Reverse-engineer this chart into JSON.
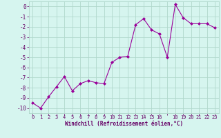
{
  "x": [
    0,
    1,
    2,
    3,
    4,
    5,
    6,
    7,
    8,
    9,
    10,
    11,
    12,
    13,
    14,
    15,
    16,
    17,
    18,
    19,
    20,
    21,
    22,
    23
  ],
  "y": [
    -9.5,
    -10.0,
    -8.9,
    -7.9,
    -6.9,
    -8.3,
    -7.6,
    -7.3,
    -7.5,
    -7.6,
    -5.5,
    -5.0,
    -4.9,
    -1.8,
    -1.2,
    -2.3,
    -2.7,
    -5.0,
    0.2,
    -1.1,
    -1.7,
    -1.7,
    -1.7,
    -2.1
  ],
  "line_color": "#990099",
  "marker": "D",
  "marker_size": 2,
  "bg_color": "#d6f5ef",
  "grid_color": "#b0d8cc",
  "xlabel": "Windchill (Refroidissement éolien,°C)",
  "xlabel_color": "#660066",
  "tick_color": "#660066",
  "xlim": [
    -0.5,
    23.5
  ],
  "ylim": [
    -10.5,
    0.5
  ],
  "yticks": [
    0,
    -1,
    -2,
    -3,
    -4,
    -5,
    -6,
    -7,
    -8,
    -9,
    -10
  ],
  "xtick_labels": [
    "0",
    "1",
    "2",
    "3",
    "4",
    "5",
    "6",
    "7",
    "8",
    "9",
    "10",
    "11",
    "12",
    "13",
    "14",
    "15",
    "16",
    "",
    "18",
    "19",
    "20",
    "21",
    "22",
    "23"
  ],
  "xtick_positions": [
    0,
    1,
    2,
    3,
    4,
    5,
    6,
    7,
    8,
    9,
    10,
    11,
    12,
    13,
    14,
    15,
    16,
    17,
    18,
    19,
    20,
    21,
    22,
    23
  ],
  "line_width": 0.8
}
